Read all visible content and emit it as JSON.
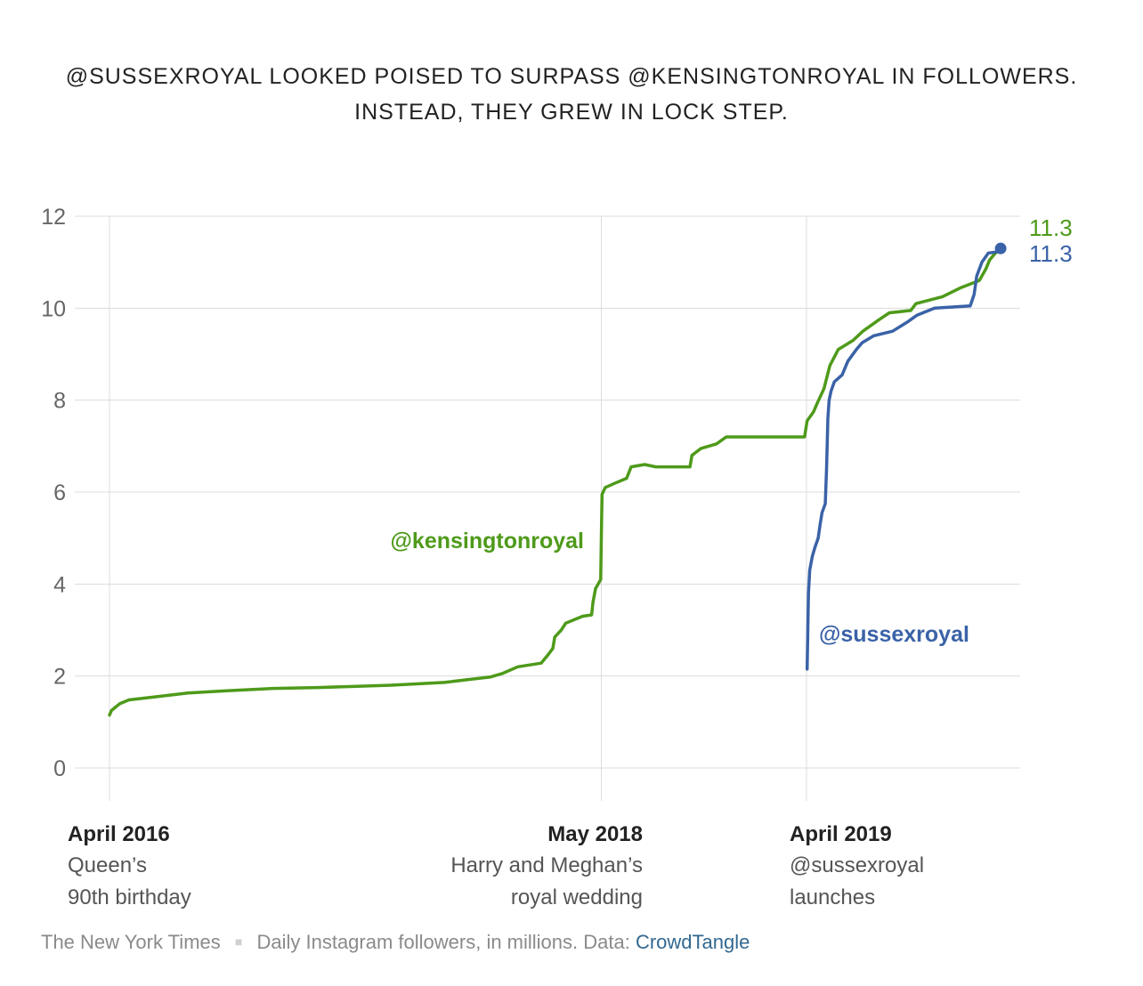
{
  "title": {
    "line1": "@SUSSEXROYAL LOOKED POISED TO SURPASS @KENSINGTONROYAL IN FOLLOWERS.",
    "line2": "INSTEAD, THEY GREW IN LOCK STEP."
  },
  "chart_data": {
    "type": "line",
    "ylim": [
      0,
      12
    ],
    "xlim": [
      "2016-04",
      "2020-01"
    ],
    "y_ticks": [
      "0",
      "2",
      "4",
      "6",
      "8",
      "10",
      "12"
    ],
    "grid": true,
    "colors": {
      "kensingtonroyal": "#4e9a1a",
      "sussexroyal": "#3a62a7"
    },
    "x_annotations": [
      {
        "date": "April 2016",
        "x": "2016-04",
        "desc1": "Queen’s",
        "desc2": "90th birthday",
        "align": "left"
      },
      {
        "date": "May 2018",
        "x": "2018-05",
        "desc1": "Harry and Meghan’s",
        "desc2": "royal wedding",
        "align": "right"
      },
      {
        "date": "April 2019",
        "x": "2019-04",
        "desc1": "@sussexroyal",
        "desc2": "launches",
        "align": "left"
      }
    ],
    "series": [
      {
        "name": "@kensingtonroyal",
        "end_label": "11.3",
        "values": [
          [
            "2016-04-19",
            1.15
          ],
          [
            "2016-04-22",
            1.25
          ],
          [
            "2016-05-05",
            1.4
          ],
          [
            "2016-05-19",
            1.48
          ],
          [
            "2016-07-01",
            1.55
          ],
          [
            "2016-08-18",
            1.63
          ],
          [
            "2016-10-17",
            1.68
          ],
          [
            "2016-12-28",
            1.73
          ],
          [
            "2017-03-07",
            1.75
          ],
          [
            "2017-06-28",
            1.8
          ],
          [
            "2017-09-18",
            1.86
          ],
          [
            "2017-10-24",
            1.92
          ],
          [
            "2017-11-29",
            1.98
          ],
          [
            "2017-12-16",
            2.05
          ],
          [
            "2018-01-10",
            2.2
          ],
          [
            "2018-02-15",
            2.28
          ],
          [
            "2018-02-25",
            2.45
          ],
          [
            "2018-03-05",
            2.6
          ],
          [
            "2018-03-08",
            2.85
          ],
          [
            "2018-03-18",
            3.0
          ],
          [
            "2018-03-25",
            3.15
          ],
          [
            "2018-04-20",
            3.3
          ],
          [
            "2018-05-04",
            3.33
          ],
          [
            "2018-05-06",
            3.6
          ],
          [
            "2018-05-10",
            3.9
          ],
          [
            "2018-05-18",
            4.1
          ],
          [
            "2018-05-19",
            5.0
          ],
          [
            "2018-05-20",
            5.95
          ],
          [
            "2018-05-25",
            6.1
          ],
          [
            "2018-06-10",
            6.2
          ],
          [
            "2018-06-27",
            6.3
          ],
          [
            "2018-07-04",
            6.55
          ],
          [
            "2018-07-25",
            6.6
          ],
          [
            "2018-08-11",
            6.55
          ],
          [
            "2018-10-03",
            6.55
          ],
          [
            "2018-10-06",
            6.8
          ],
          [
            "2018-10-20",
            6.95
          ],
          [
            "2018-11-13",
            7.05
          ],
          [
            "2018-11-28",
            7.2
          ],
          [
            "2019-03-29",
            7.2
          ],
          [
            "2019-04-02",
            7.55
          ],
          [
            "2019-04-12",
            7.75
          ],
          [
            "2019-04-18",
            7.95
          ],
          [
            "2019-04-28",
            8.25
          ],
          [
            "2019-05-07",
            8.75
          ],
          [
            "2019-05-20",
            9.1
          ],
          [
            "2019-06-12",
            9.3
          ],
          [
            "2019-06-27",
            9.5
          ],
          [
            "2019-07-22",
            9.75
          ],
          [
            "2019-08-07",
            9.9
          ],
          [
            "2019-09-09",
            9.95
          ],
          [
            "2019-09-17",
            10.1
          ],
          [
            "2019-10-28",
            10.25
          ],
          [
            "2019-11-26",
            10.45
          ],
          [
            "2019-12-24",
            10.6
          ],
          [
            "2020-01-03",
            10.85
          ],
          [
            "2020-01-09",
            11.05
          ],
          [
            "2020-01-18",
            11.2
          ],
          [
            "2020-01-26",
            11.28
          ]
        ]
      },
      {
        "name": "@sussexroyal",
        "end_label": "11.3",
        "values": [
          [
            "2019-04-02",
            2.15
          ],
          [
            "2019-04-04",
            3.8
          ],
          [
            "2019-04-06",
            4.3
          ],
          [
            "2019-04-10",
            4.6
          ],
          [
            "2019-04-14",
            4.8
          ],
          [
            "2019-04-19",
            5.0
          ],
          [
            "2019-04-22",
            5.3
          ],
          [
            "2019-04-25",
            5.55
          ],
          [
            "2019-04-30",
            5.75
          ],
          [
            "2019-05-02",
            6.5
          ],
          [
            "2019-05-04",
            7.6
          ],
          [
            "2019-05-06",
            8.0
          ],
          [
            "2019-05-09",
            8.2
          ],
          [
            "2019-05-14",
            8.4
          ],
          [
            "2019-05-26",
            8.55
          ],
          [
            "2019-06-04",
            8.85
          ],
          [
            "2019-06-17",
            9.1
          ],
          [
            "2019-06-26",
            9.25
          ],
          [
            "2019-07-14",
            9.4
          ],
          [
            "2019-08-12",
            9.5
          ],
          [
            "2019-09-04",
            9.7
          ],
          [
            "2019-09-19",
            9.85
          ],
          [
            "2019-10-16",
            10.0
          ],
          [
            "2019-12-10",
            10.05
          ],
          [
            "2019-12-16",
            10.3
          ],
          [
            "2019-12-20",
            10.7
          ],
          [
            "2019-12-28",
            11.0
          ],
          [
            "2020-01-07",
            11.2
          ],
          [
            "2020-01-18",
            11.22
          ],
          [
            "2020-01-26",
            11.3
          ]
        ]
      }
    ]
  },
  "footer": {
    "source": "The New York Times",
    "separator": "■",
    "note": "Daily Instagram followers, in millions. Data: ",
    "link": "CrowdTangle"
  }
}
